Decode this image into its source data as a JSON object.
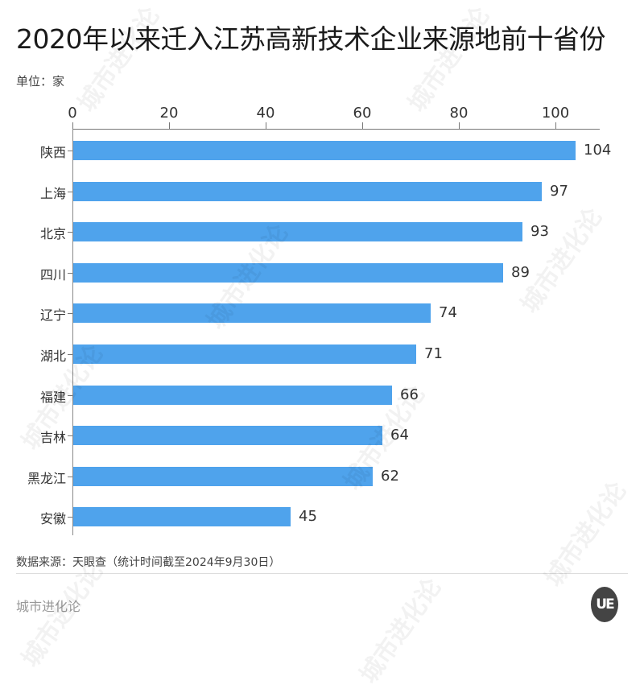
{
  "header": {
    "title": "2020年以来迁入江苏高新技术企业来源地前十省份",
    "unit": "单位：家"
  },
  "footer": {
    "source": "数据来源：天眼查（统计时间截至2024年9月30日）",
    "brand": "城市进化论",
    "logo_text": "UE",
    "watermark": "城市进化论"
  },
  "colors": {
    "bar": "#4fa3ec"
  },
  "chart_data": {
    "type": "bar",
    "orientation": "horizontal",
    "title": "2020年以来迁入江苏高新技术企业来源地前十省份",
    "ylabel": "",
    "xlabel": "",
    "unit": "家",
    "categories": [
      "陕西",
      "上海",
      "北京",
      "四川",
      "辽宁",
      "湖北",
      "福建",
      "吉林",
      "黑龙江",
      "安徽"
    ],
    "values": [
      104,
      97,
      93,
      89,
      74,
      71,
      66,
      64,
      62,
      45
    ],
    "xticks": [
      "0",
      "20",
      "40",
      "60",
      "80",
      "100"
    ],
    "xlim": [
      0,
      109
    ],
    "axis_position": "top",
    "grid": false,
    "legend": null,
    "data_labels": true
  }
}
